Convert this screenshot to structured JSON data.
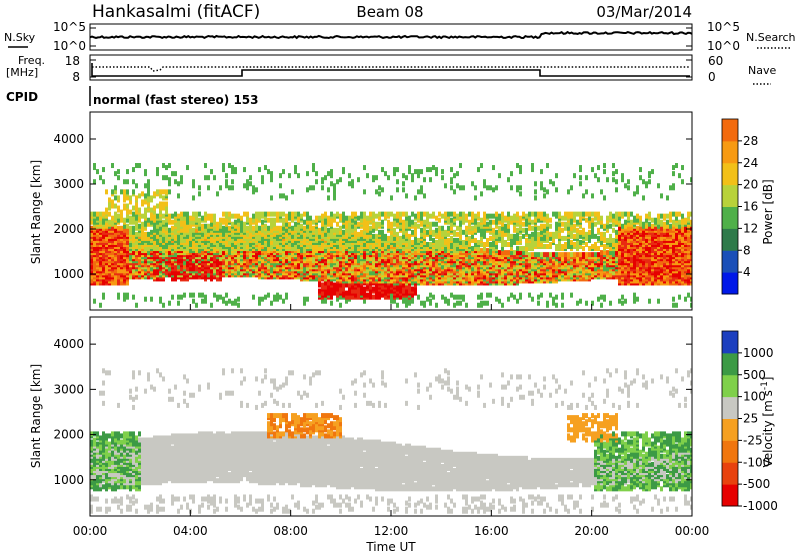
{
  "header": {
    "station": "Hankasalmi (fitACF)",
    "beam": "Beam 08",
    "date": "03/Mar/2014"
  },
  "noise_panel": {
    "left_label": "N.Sky",
    "right_label": "N.Search",
    "left_ticks": [
      "10^5",
      "10^0"
    ],
    "right_ticks": [
      "10^5",
      "10^0"
    ]
  },
  "freq_panel": {
    "left_label_1": "Freq.",
    "left_label_2": "[MHz]",
    "left_ticks": [
      "18",
      "8"
    ],
    "right_label": "Nave",
    "right_ticks": [
      "60",
      "0"
    ]
  },
  "cpid_panel": {
    "label": "CPID",
    "text": "normal (fast stereo) 153"
  },
  "colors": {
    "power_scale": [
      "#0018e8",
      "#1a4fb8",
      "#2e7a4a",
      "#4fb049",
      "#b8d23a",
      "#f2c018",
      "#f79a12",
      "#f26a0e",
      "#e82a12",
      "#e60000"
    ],
    "velocity_scale": [
      "#1c3fbf",
      "#1f6f8e",
      "#3c9a45",
      "#7fd04a",
      "#c8c8c2",
      "#c8c8c2",
      "#f6a020",
      "#f0760e",
      "#e8420e",
      "#e60000"
    ]
  },
  "chart_data": [
    {
      "type": "heatmap",
      "quantity": "Power",
      "ylabel": "Slant Range [km]",
      "yticks": [
        "1000",
        "2000",
        "3000",
        "4000"
      ],
      "ylim": [
        200,
        4600
      ],
      "xlim_hours": [
        0,
        24
      ],
      "colorbar_label": "Power [dB]",
      "colorbar_ticks": [
        "4",
        "8",
        "12",
        "16",
        "20",
        "24",
        "28"
      ],
      "colorbar_range": [
        0,
        32
      ]
    },
    {
      "type": "heatmap",
      "quantity": "Velocity",
      "ylabel": "Slant Range [km]",
      "yticks": [
        "1000",
        "2000",
        "3000",
        "4000"
      ],
      "ylim": [
        200,
        4600
      ],
      "xlim_hours": [
        0,
        24
      ],
      "colorbar_label": "Velocity [m s",
      "colorbar_label_sup": "-1",
      "colorbar_label_end": "]",
      "colorbar_ticks": [
        "1000",
        "500",
        "100",
        "25",
        "-25",
        "-100",
        "-500",
        "-1000"
      ]
    }
  ],
  "xaxis": {
    "ticks": [
      "00:00",
      "04:00",
      "08:00",
      "12:00",
      "16:00",
      "20:00",
      "00:00"
    ],
    "label": "Time UT"
  }
}
